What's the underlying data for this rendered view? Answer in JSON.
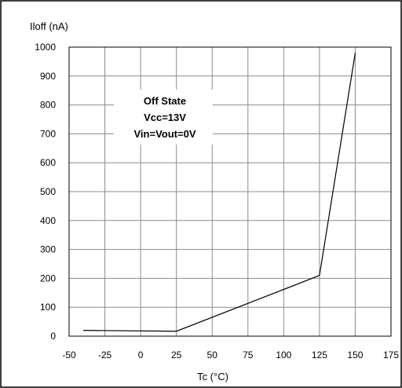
{
  "chart_data": {
    "type": "line",
    "title": "",
    "ylabel": "Iloff (nA)",
    "xlabel": "Tc (°C)",
    "xlim": [
      -50,
      175
    ],
    "ylim": [
      0,
      1000
    ],
    "x_ticks": [
      -50,
      -25,
      0,
      25,
      50,
      75,
      100,
      125,
      150,
      175
    ],
    "y_ticks": [
      0,
      100,
      200,
      300,
      400,
      500,
      600,
      700,
      800,
      900,
      1000
    ],
    "grid": true,
    "legend": "none",
    "series": [
      {
        "x": [
          -40,
          25,
          125,
          150
        ],
        "y": [
          20,
          17,
          210,
          980
        ]
      }
    ],
    "annotation": {
      "lines": [
        "Off State",
        "Vcc=13V",
        "Vin=Vout=0V"
      ]
    }
  }
}
